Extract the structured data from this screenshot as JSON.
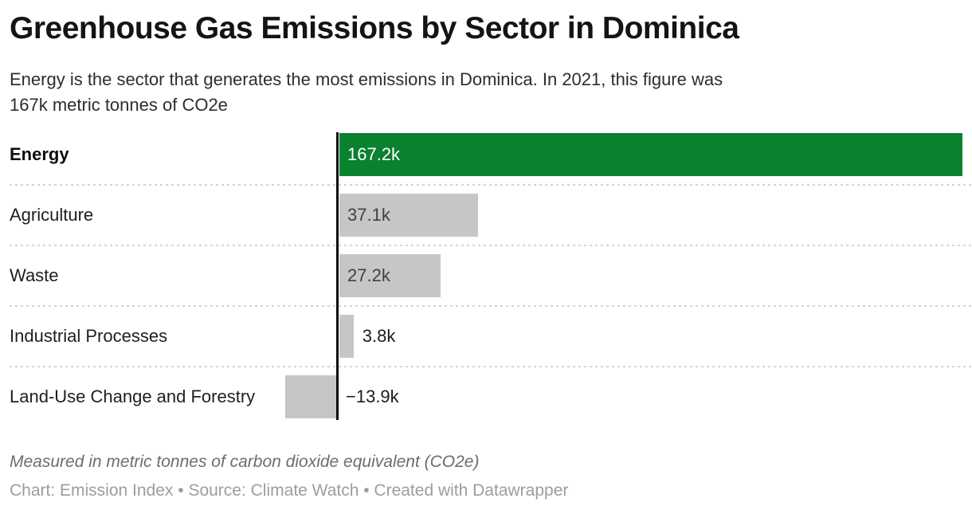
{
  "header": {
    "title": "Greenhouse Gas Emissions by Sector in Dominica",
    "subtitle_lines": [
      "Energy is the sector that generates the most emissions in Dominica. In 2021, this figure was",
      "167k metric tonnes of CO2e"
    ]
  },
  "chart_data": {
    "type": "bar",
    "orientation": "horizontal",
    "title": "Greenhouse Gas Emissions by Sector in Dominica",
    "categories": [
      "Energy",
      "Agriculture",
      "Waste",
      "Industrial Processes",
      "Land-Use Change and Forestry"
    ],
    "values": [
      167.2,
      37.1,
      27.2,
      3.8,
      -13.9
    ],
    "value_labels": [
      "167.2k",
      "37.1k",
      "27.2k",
      "3.8k",
      "−13.9k"
    ],
    "unit": "metric tonnes of CO2e (thousands)",
    "xlim": [
      -13.9,
      167.2
    ],
    "highlight_index": 0,
    "legend": "none",
    "grid": "dotted row separators, zero baseline axis",
    "colors": {
      "highlight": "#09812f",
      "default": "#c6c6c6",
      "axis": "#0a0a0a",
      "separator": "#d4d4d4"
    }
  },
  "footer": {
    "note": "Measured in metric tonnes of carbon dioxide equivalent (CO2e)",
    "attribution": "Chart: Emission Index • Source: Climate Watch • Created with Datawrapper"
  }
}
